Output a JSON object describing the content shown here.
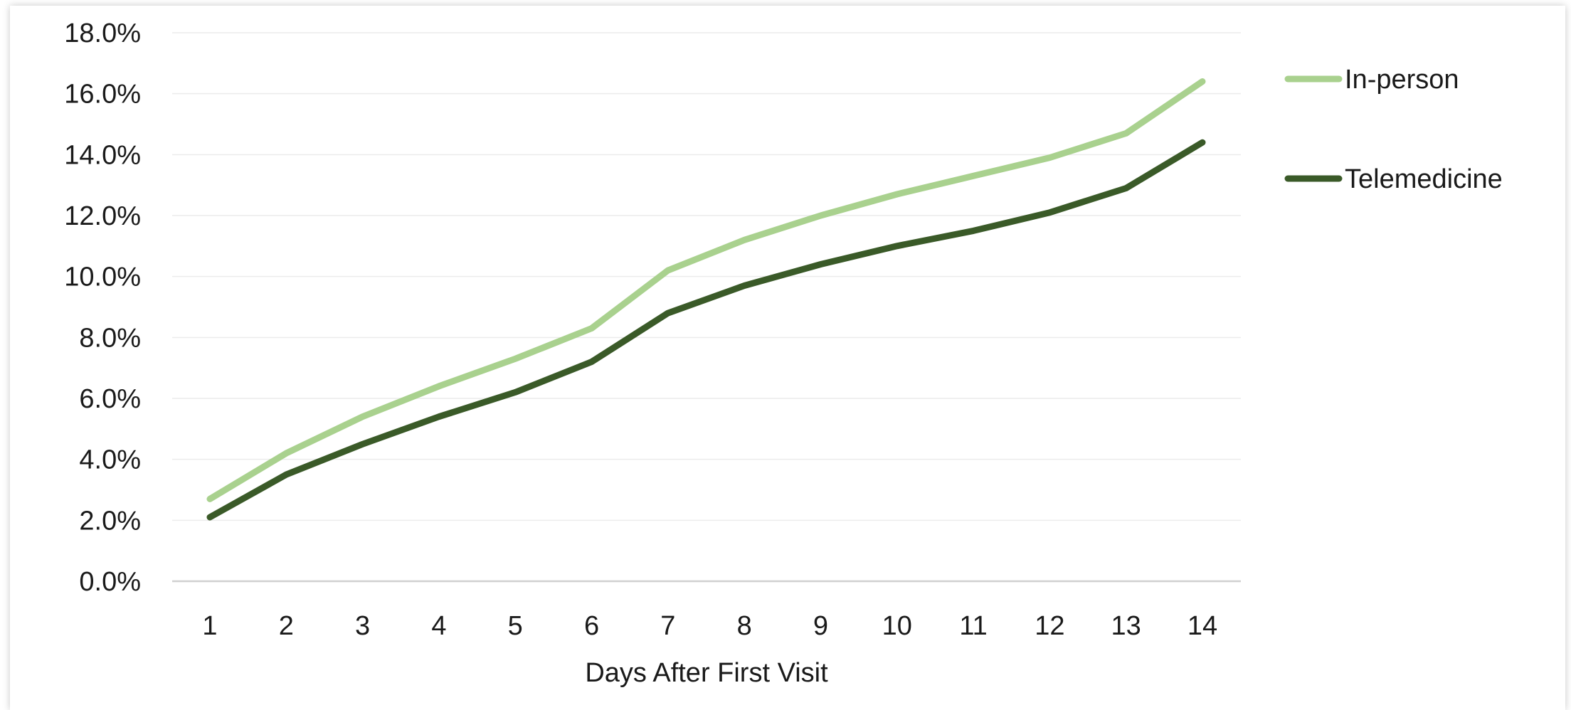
{
  "chart_data": {
    "type": "line",
    "xlabel": "Days After First Visit",
    "ylabel": "",
    "ylim": [
      0,
      0.18
    ],
    "y_tick_values": [
      0,
      0.02,
      0.04,
      0.06,
      0.08,
      0.1,
      0.12,
      0.14,
      0.16,
      0.18
    ],
    "y_tick_labels": [
      "0.0%",
      "2.0%",
      "4.0%",
      "6.0%",
      "8.0%",
      "10.0%",
      "12.0%",
      "14.0%",
      "16.0%",
      "18.0%"
    ],
    "categories": [
      "1",
      "2",
      "3",
      "4",
      "5",
      "6",
      "7",
      "8",
      "9",
      "10",
      "11",
      "12",
      "13",
      "14"
    ],
    "grid": true,
    "legend_position": "right",
    "series": [
      {
        "name": "In-person",
        "color": "#a9d18e",
        "values": [
          0.027,
          0.042,
          0.054,
          0.064,
          0.073,
          0.083,
          0.102,
          0.112,
          0.12,
          0.127,
          0.133,
          0.139,
          0.147,
          0.164
        ]
      },
      {
        "name": "Telemedicine",
        "color": "#3a5a28",
        "values": [
          0.021,
          0.035,
          0.045,
          0.054,
          0.062,
          0.072,
          0.088,
          0.097,
          0.104,
          0.11,
          0.115,
          0.121,
          0.129,
          0.144
        ]
      }
    ]
  }
}
